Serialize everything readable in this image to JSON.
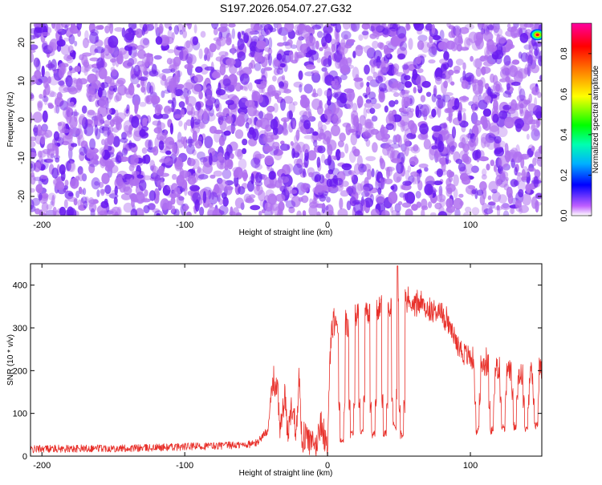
{
  "title": "S197.2026.054.07.27.G32",
  "top_panel": {
    "xlabel": "Height of straight line (km)",
    "ylabel": "Frequency (Hz)",
    "colorbar_label": "Normalized spectral amplitude"
  },
  "bottom_panel": {
    "xlabel": "Height of straight line (km)",
    "ylabel": "SNR (10 * v/v)"
  },
  "chart_data": [
    {
      "type": "heatmap",
      "title": "S197.2026.054.07.27.G32",
      "xlabel": "Height of straight line (km)",
      "ylabel": "Frequency (Hz)",
      "xlim": [
        -208,
        150
      ],
      "ylim": [
        -25,
        25
      ],
      "x_ticks": [
        -200,
        -100,
        0,
        100
      ],
      "y_ticks": [
        -20,
        -10,
        0,
        10,
        20
      ],
      "colorbar": {
        "label": "Normalized spectral amplitude",
        "range": [
          0.0,
          0.95
        ],
        "ticks": [
          0.0,
          0.2,
          0.4,
          0.6,
          0.8
        ],
        "colormap": [
          "#ffffff",
          "#b040ff",
          "#0000ff",
          "#00c8ff",
          "#00ff00",
          "#ffff00",
          "#ff8000",
          "#ff0000",
          "#ff00a0"
        ]
      },
      "background_level": 0.03,
      "speckle_level_range": [
        0.05,
        0.18
      ],
      "hotspot": {
        "x": 147,
        "y": 22,
        "value": 0.95
      },
      "grid": false,
      "legend": "none"
    },
    {
      "type": "line",
      "xlabel": "Height of straight line (km)",
      "ylabel": "SNR (10 * v/v)",
      "xlim": [
        -208,
        150
      ],
      "ylim": [
        0,
        450
      ],
      "x_ticks": [
        -200,
        -100,
        0,
        100
      ],
      "y_ticks": [
        0,
        100,
        200,
        300,
        400
      ],
      "line_color": "#e8302a",
      "grid": false,
      "legend": "none",
      "series": [
        {
          "x": [
            -208,
            -200,
            -180,
            -160,
            -140,
            -120,
            -100,
            -80,
            -60,
            -50,
            -42,
            -38,
            -35,
            -33,
            -30,
            -28,
            -25,
            -22,
            -20,
            -18,
            -15,
            -12,
            -10,
            -8,
            -5,
            -3,
            0,
            2,
            4,
            6,
            8,
            10,
            12,
            15,
            18,
            20,
            25,
            30,
            35,
            40,
            45,
            50,
            55,
            60,
            65,
            70,
            75,
            80,
            85,
            90,
            95,
            100,
            105,
            110,
            115,
            120,
            125,
            130,
            135,
            140,
            145,
            150
          ],
          "values": [
            15,
            18,
            17,
            19,
            18,
            20,
            22,
            24,
            26,
            30,
            60,
            180,
            150,
            60,
            140,
            50,
            120,
            60,
            190,
            40,
            50,
            30,
            25,
            20,
            80,
            60,
            5,
            250,
            320,
            300,
            260,
            280,
            310,
            300,
            320,
            330,
            330,
            340,
            345,
            350,
            355,
            380,
            360,
            355,
            350,
            345,
            340,
            335,
            300,
            270,
            240,
            230,
            225,
            215,
            210,
            205,
            200,
            195,
            190,
            185,
            200,
            210
          ]
        }
      ],
      "dips": [
        {
          "x": 10,
          "min": 30
        },
        {
          "x": 17,
          "min": 40
        },
        {
          "x": 24,
          "min": 50
        },
        {
          "x": 32,
          "min": 40
        },
        {
          "x": 40,
          "min": 45
        },
        {
          "x": 47,
          "min": 60
        },
        {
          "x": 52,
          "min": 40
        },
        {
          "x": 105,
          "min": 50
        },
        {
          "x": 115,
          "min": 50
        },
        {
          "x": 123,
          "min": 55
        },
        {
          "x": 131,
          "min": 60
        },
        {
          "x": 139,
          "min": 50
        },
        {
          "x": 146,
          "min": 60
        }
      ]
    }
  ]
}
